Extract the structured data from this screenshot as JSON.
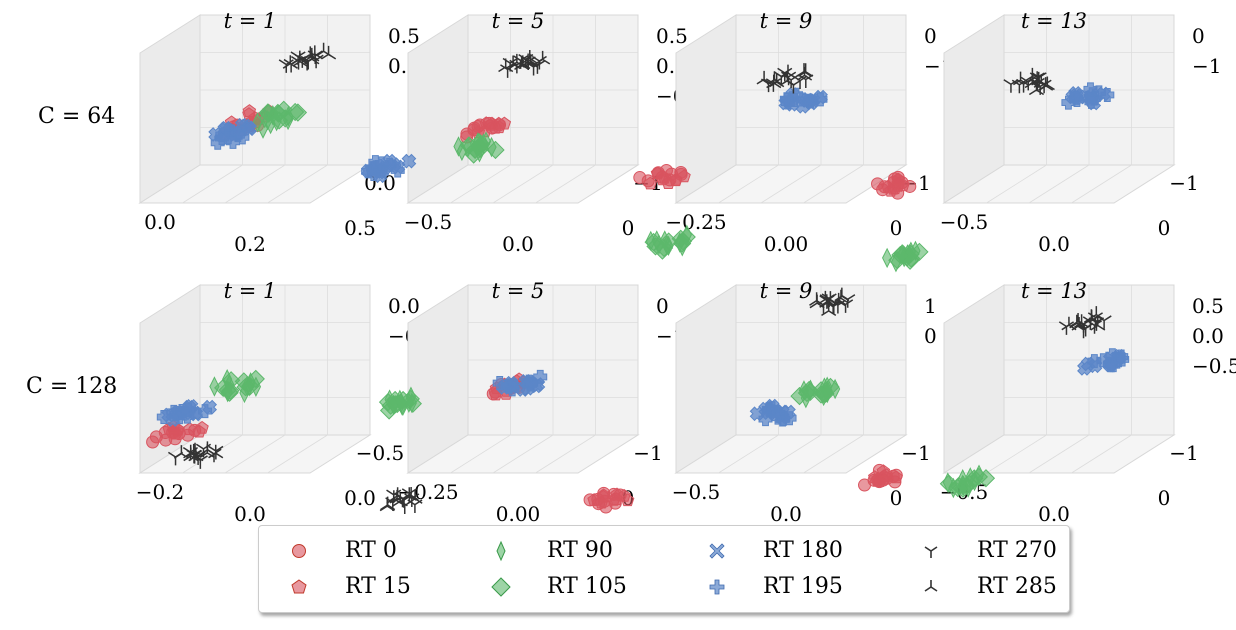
{
  "row_labels": [
    "C = 64",
    "C = 128"
  ],
  "legend": [
    {
      "label": "RT 0",
      "color": "#d9545f",
      "marker": "circle"
    },
    {
      "label": "RT 15",
      "color": "#d9545f",
      "marker": "pentagon"
    },
    {
      "label": "RT 90",
      "color": "#5cb86b",
      "marker": "thin-diamond"
    },
    {
      "label": "RT 105",
      "color": "#5cb86b",
      "marker": "diamond"
    },
    {
      "label": "RT 180",
      "color": "#5b86c8",
      "marker": "x"
    },
    {
      "label": "RT 195",
      "color": "#5b86c8",
      "marker": "plus"
    },
    {
      "label": "RT 270",
      "color": "#333333",
      "marker": "tri-down"
    },
    {
      "label": "RT 285",
      "color": "#333333",
      "marker": "tri-up"
    }
  ],
  "chart_data": [
    {
      "type": "scatter",
      "title": "t = 1",
      "row": "C = 64",
      "x_ticks": [
        "0.0",
        "0.2"
      ],
      "y_ticks": [
        "0.5",
        "0.0"
      ],
      "z_ticks": [
        "0.5",
        "0.0"
      ],
      "clusters": [
        {
          "series": "RT 0",
          "x": 0.1,
          "y": 0.1,
          "z": 0.0
        },
        {
          "series": "RT 15",
          "x": 0.15,
          "y": 0.15,
          "z": 0.05
        },
        {
          "series": "RT 90",
          "x": 0.2,
          "y": 0.3,
          "z": -0.05
        },
        {
          "series": "RT 105",
          "x": 0.22,
          "y": 0.35,
          "z": 0.0
        },
        {
          "series": "RT 180",
          "x": 0.05,
          "y": 0.1,
          "z": -0.05
        },
        {
          "series": "RT 195",
          "x": 0.03,
          "y": 0.05,
          "z": -0.1
        },
        {
          "series": "RT 270",
          "x": 0.25,
          "y": 0.55,
          "z": 0.5
        },
        {
          "series": "RT 285",
          "x": 0.28,
          "y": 0.6,
          "z": 0.55
        }
      ]
    },
    {
      "type": "scatter",
      "title": "t = 5",
      "row": "C = 64",
      "x_ticks": [
        "−0.5",
        "0.0"
      ],
      "y_ticks": [
        "0",
        "−1"
      ],
      "z_ticks": [
        "0.5",
        "0.0",
        "−0.5"
      ],
      "clusters": [
        {
          "series": "RT 0",
          "x": 0.0,
          "y": 0.0,
          "z": 0.0
        },
        {
          "series": "RT 15",
          "x": 0.02,
          "y": 0.0,
          "z": 0.02
        },
        {
          "series": "RT 90",
          "x": 0.05,
          "y": -0.2,
          "z": -0.1
        },
        {
          "series": "RT 105",
          "x": 0.05,
          "y": -0.2,
          "z": -0.12
        },
        {
          "series": "RT 180",
          "x": -0.5,
          "y": -0.3,
          "z": -0.3
        },
        {
          "series": "RT 195",
          "x": -0.55,
          "y": -0.3,
          "z": -0.3
        },
        {
          "series": "RT 270",
          "x": 0.0,
          "y": 0.5,
          "z": 0.5
        },
        {
          "series": "RT 285",
          "x": 0.0,
          "y": 0.5,
          "z": 0.52
        }
      ]
    },
    {
      "type": "scatter",
      "title": "t = 9",
      "row": "C = 64",
      "x_ticks": [
        "−0.25",
        "0.00"
      ],
      "y_ticks": [
        "0",
        "−1"
      ],
      "z_ticks": [
        "0",
        "−1"
      ],
      "clusters": [
        {
          "series": "RT 0",
          "x": -0.35,
          "y": -0.5,
          "z": -0.3
        },
        {
          "series": "RT 15",
          "x": -0.33,
          "y": -0.5,
          "z": -0.3
        },
        {
          "series": "RT 90",
          "x": -0.15,
          "y": -0.8,
          "z": -0.9
        },
        {
          "series": "RT 105",
          "x": -0.15,
          "y": -0.8,
          "z": -0.9
        },
        {
          "series": "RT 180",
          "x": 0.05,
          "y": 0.5,
          "z": 0.1
        },
        {
          "series": "RT 195",
          "x": 0.05,
          "y": 0.5,
          "z": 0.1
        },
        {
          "series": "RT 270",
          "x": -0.1,
          "y": 0.6,
          "z": 0.3
        },
        {
          "series": "RT 285",
          "x": -0.1,
          "y": 0.6,
          "z": 0.3
        }
      ]
    },
    {
      "type": "scatter",
      "title": "t = 13",
      "row": "C = 64",
      "x_ticks": [
        "−0.5",
        "0.0"
      ],
      "y_ticks": [
        "0",
        "−1"
      ],
      "z_ticks": [
        "0",
        "−1"
      ],
      "clusters": [
        {
          "series": "RT 0",
          "x": -0.6,
          "y": -0.5,
          "z": -0.4
        },
        {
          "series": "RT 15",
          "x": -0.6,
          "y": -0.5,
          "z": -0.4
        },
        {
          "series": "RT 90",
          "x": -0.3,
          "y": -0.9,
          "z": -1.0
        },
        {
          "series": "RT 105",
          "x": -0.3,
          "y": -0.9,
          "z": -1.0
        },
        {
          "series": "RT 180",
          "x": 0.1,
          "y": 0.6,
          "z": 0.1
        },
        {
          "series": "RT 195",
          "x": 0.1,
          "y": 0.6,
          "z": 0.1
        },
        {
          "series": "RT 270",
          "x": -0.2,
          "y": 0.5,
          "z": 0.3
        },
        {
          "series": "RT 285",
          "x": -0.2,
          "y": 0.5,
          "z": 0.3
        }
      ]
    },
    {
      "type": "scatter",
      "title": "t = 1",
      "row": "C = 128",
      "x_ticks": [
        "−0.2",
        "0.0"
      ],
      "y_ticks": [
        "0.0",
        "−0.5"
      ],
      "z_ticks": [
        "0.0",
        "−0.5"
      ],
      "clusters": [
        {
          "series": "RT 0",
          "x": -0.2,
          "y": -0.2,
          "z": -0.3
        },
        {
          "series": "RT 15",
          "x": -0.15,
          "y": -0.2,
          "z": -0.25
        },
        {
          "series": "RT 90",
          "x": 0.05,
          "y": 0.1,
          "z": 0.1
        },
        {
          "series": "RT 105",
          "x": 0.05,
          "y": 0.1,
          "z": 0.1
        },
        {
          "series": "RT 180",
          "x": -0.15,
          "y": -0.1,
          "z": -0.1
        },
        {
          "series": "RT 195",
          "x": -0.18,
          "y": -0.1,
          "z": -0.12
        },
        {
          "series": "RT 270",
          "x": 0.0,
          "y": -0.3,
          "z": -0.45
        },
        {
          "series": "RT 285",
          "x": 0.0,
          "y": -0.3,
          "z": -0.45
        }
      ]
    },
    {
      "type": "scatter",
      "title": "t = 5",
      "row": "C = 128",
      "x_ticks": [
        "−0.25",
        "0.00"
      ],
      "y_ticks": [
        "0",
        "−1"
      ],
      "z_ticks": [
        "0",
        "−1"
      ],
      "clusters": [
        {
          "series": "RT 0",
          "x": 0.0,
          "y": 0.3,
          "z": 0.0
        },
        {
          "series": "RT 15",
          "x": 0.0,
          "y": 0.3,
          "z": 0.0
        },
        {
          "series": "RT 90",
          "x": -0.4,
          "y": -0.3,
          "z": 0.1
        },
        {
          "series": "RT 105",
          "x": -0.4,
          "y": -0.3,
          "z": 0.1
        },
        {
          "series": "RT 180",
          "x": 0.05,
          "y": 0.35,
          "z": 0.02
        },
        {
          "series": "RT 195",
          "x": 0.05,
          "y": 0.35,
          "z": 0.02
        },
        {
          "series": "RT 270",
          "x": -0.3,
          "y": -0.5,
          "z": -0.9
        },
        {
          "series": "RT 285",
          "x": -0.3,
          "y": -0.5,
          "z": -0.9
        }
      ]
    },
    {
      "type": "scatter",
      "title": "t = 9",
      "row": "C = 128",
      "x_ticks": [
        "−0.5",
        "0.0"
      ],
      "y_ticks": [
        "0",
        "−1"
      ],
      "z_ticks": [
        "1",
        "0"
      ],
      "clusters": [
        {
          "series": "RT 0",
          "x": -0.6,
          "y": -0.7,
          "z": -0.8
        },
        {
          "series": "RT 15",
          "x": -0.6,
          "y": -0.7,
          "z": -0.8
        },
        {
          "series": "RT 90",
          "x": 0.3,
          "y": 0.2,
          "z": 0.0
        },
        {
          "series": "RT 105",
          "x": 0.3,
          "y": 0.2,
          "z": 0.0
        },
        {
          "series": "RT 180",
          "x": 0.1,
          "y": 0.1,
          "z": -0.2
        },
        {
          "series": "RT 195",
          "x": 0.1,
          "y": 0.1,
          "z": -0.2
        },
        {
          "series": "RT 270",
          "x": 0.2,
          "y": 0.6,
          "z": 0.8
        },
        {
          "series": "RT 285",
          "x": 0.2,
          "y": 0.6,
          "z": 0.8
        }
      ]
    },
    {
      "type": "scatter",
      "title": "t = 13",
      "row": "C = 128",
      "x_ticks": [
        "−0.5",
        "0.0"
      ],
      "y_ticks": [
        "0",
        "−1"
      ],
      "z_ticks": [
        "0.5",
        "0.0",
        "−0.5"
      ],
      "clusters": [
        {
          "series": "RT 0",
          "x": -0.6,
          "y": -0.6,
          "z": -0.6
        },
        {
          "series": "RT 15",
          "x": -0.6,
          "y": -0.6,
          "z": -0.6
        },
        {
          "series": "RT 90",
          "x": -0.1,
          "y": -0.5,
          "z": -0.7
        },
        {
          "series": "RT 105",
          "x": -0.1,
          "y": -0.5,
          "z": -0.7
        },
        {
          "series": "RT 180",
          "x": 0.3,
          "y": 0.5,
          "z": 0.2
        },
        {
          "series": "RT 195",
          "x": 0.3,
          "y": 0.5,
          "z": 0.2
        },
        {
          "series": "RT 270",
          "x": 0.1,
          "y": 0.6,
          "z": 0.6
        },
        {
          "series": "RT 285",
          "x": 0.1,
          "y": 0.6,
          "z": 0.6
        }
      ]
    }
  ]
}
